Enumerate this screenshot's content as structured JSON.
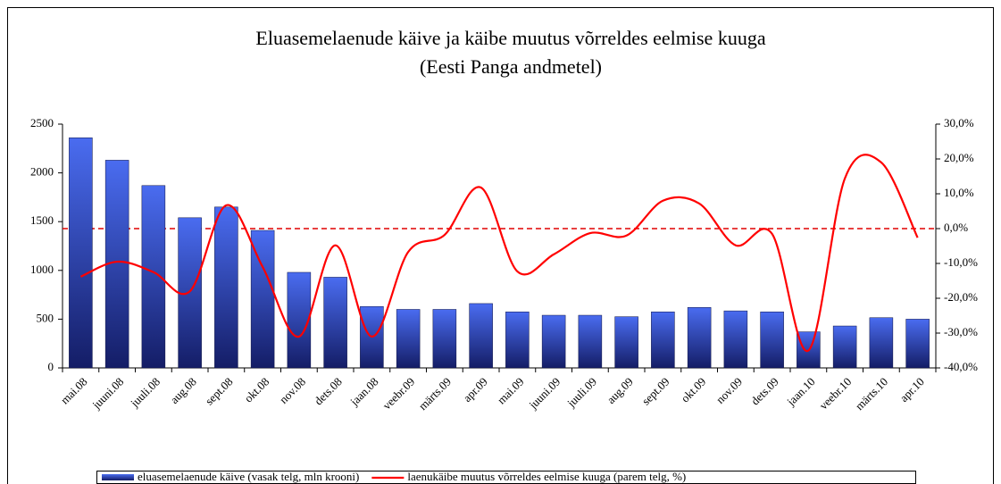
{
  "chart_data": {
    "type": "bar-line",
    "title": "Eluasemelaenude käive ja käibe muutus võrreldes eelmise kuuga",
    "subtitle": "(Eesti Panga andmetel)",
    "categories": [
      "mai.08",
      "juuni.08",
      "juuli.08",
      "aug.08",
      "sept.08",
      "okt.08",
      "nov.08",
      "dets.08",
      "jaan.08",
      "veebr.09",
      "märts.09",
      "apr.09",
      "mai.09",
      "juuni.09",
      "juuli.09",
      "aug.09",
      "sept.09",
      "okt.09",
      "nov.09",
      "dets.09",
      "jaan.10",
      "veebr.10",
      "märts.10",
      "apr.10"
    ],
    "series": [
      {
        "name": "eluasemelaenude käive (vasak telg, mln krooni)",
        "type": "bar",
        "color": "#2e4bd6",
        "values": [
          2360,
          2130,
          1870,
          1540,
          1650,
          1410,
          980,
          930,
          630,
          600,
          600,
          660,
          575,
          540,
          540,
          525,
          575,
          620,
          585,
          575,
          370,
          430,
          515,
          500
        ]
      },
      {
        "name": "laenukäibe muutus võrreldes eelmise kuuga (parem telg, %)",
        "type": "line",
        "axis": "y2",
        "color": "#ff0000",
        "smooth": true,
        "values": [
          -13.8,
          -9.5,
          -12.5,
          -18,
          6.7,
          -11,
          -31,
          -4.8,
          -31,
          -6.7,
          -1.8,
          11.8,
          -12.3,
          -7.4,
          -1.3,
          -2,
          8,
          7.2,
          -4.8,
          -1.5,
          -35,
          14.4,
          19,
          -2.6
        ]
      }
    ],
    "ylim": [
      0,
      2500
    ],
    "yticks": [
      0,
      500,
      1000,
      1500,
      2000,
      2500
    ],
    "y2lim": [
      -40,
      30
    ],
    "y2ticks": [
      {
        "value": -40,
        "label": "-40,0%"
      },
      {
        "value": -30,
        "label": "-30,0%"
      },
      {
        "value": -20,
        "label": "-20,0%"
      },
      {
        "value": -10,
        "label": "-10,0%"
      },
      {
        "value": 0,
        "label": "0,0%"
      },
      {
        "value": 10,
        "label": "10,0%"
      },
      {
        "value": 20,
        "label": "20,0%"
      },
      {
        "value": 30,
        "label": "30,0%"
      }
    ],
    "reference_line_color": "#e00000",
    "legend": "bottom"
  }
}
